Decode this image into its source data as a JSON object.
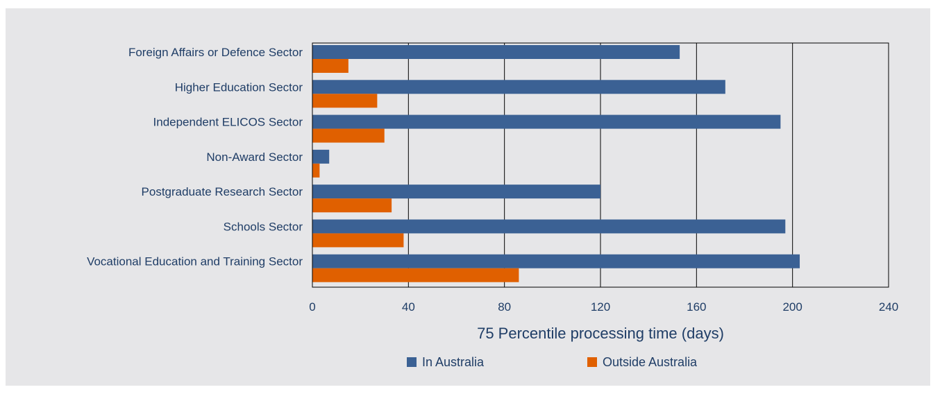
{
  "chart_data": {
    "type": "bar",
    "orientation": "horizontal",
    "categories": [
      "Foreign Affairs or Defence Sector",
      "Higher Education Sector",
      "Independent ELICOS Sector",
      "Non-Award Sector",
      "Postgraduate Research Sector",
      "Schools Sector",
      "Vocational Education and Training Sector"
    ],
    "series": [
      {
        "name": "In Australia",
        "color": "#3b6194",
        "values": [
          153,
          172,
          195,
          7,
          120,
          197,
          203
        ]
      },
      {
        "name": "Outside Australia",
        "color": "#e06000",
        "values": [
          15,
          27,
          30,
          3,
          33,
          38,
          86
        ]
      }
    ],
    "xlabel": "75 Percentile processing time (days)",
    "ylabel": "",
    "xlim": [
      0,
      240
    ],
    "xticks": [
      "0",
      "40",
      "80",
      "120",
      "160",
      "200",
      "240"
    ],
    "grid": true,
    "legend": "bottom"
  }
}
